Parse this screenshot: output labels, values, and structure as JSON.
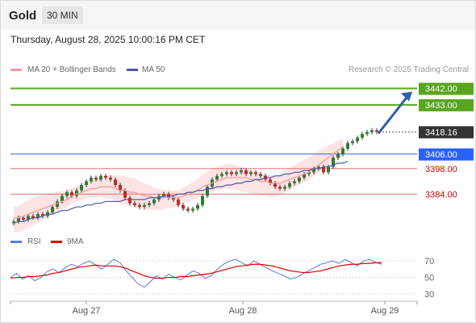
{
  "header": {
    "title": "Gold",
    "timeframe": "30 MIN"
  },
  "datetime": "Thursday, August 28, 2025 10:00:16 PM CET",
  "legend": {
    "ma20_label": "MA 20 + Bollinger Bands",
    "ma50_label": "MA 50",
    "rsi_label": "RSI",
    "rsi_ma_label": "9MA"
  },
  "credit": "Research © 2025 Trading Central",
  "colors": {
    "bull": "#2e7d32",
    "bear": "#c62828",
    "green_level": "#5aa51e",
    "blue_level": "#2962ff",
    "red_level": "#e57373",
    "last": "#333333",
    "ma20": "#ef9a9a",
    "ma50": "#4a5aa8",
    "band": "#fde3e3",
    "rsi": "#5b7bd5",
    "rsi_ma": "#e00000"
  },
  "chart_data": [
    {
      "type": "candlestick",
      "title": "Gold",
      "yrange": [
        3366,
        3448
      ],
      "xticks": [
        "Aug 27",
        "Aug 28",
        "Aug 29"
      ],
      "last_price": "3418.16",
      "levels": [
        {
          "value": 3442.0,
          "label": "3442.00",
          "kind": "resistance"
        },
        {
          "value": 3433.0,
          "label": "3433.00",
          "kind": "resistance"
        },
        {
          "value": 3406.0,
          "label": "3406.00",
          "kind": "pivot"
        },
        {
          "value": 3398.0,
          "label": "3398.00",
          "kind": "support"
        },
        {
          "value": 3384.0,
          "label": "3384.00",
          "kind": "support"
        }
      ],
      "closes": [
        3369,
        3371,
        3370,
        3372,
        3371,
        3373,
        3372,
        3374,
        3377,
        3380,
        3383,
        3385,
        3383,
        3386,
        3389,
        3391,
        3393,
        3392,
        3394,
        3393,
        3392,
        3389,
        3386,
        3382,
        3379,
        3378,
        3377,
        3378,
        3379,
        3381,
        3383,
        3384,
        3382,
        3381,
        3378,
        3376,
        3375,
        3376,
        3378,
        3383,
        3388,
        3392,
        3394,
        3395,
        3396,
        3395,
        3396,
        3397,
        3395,
        3396,
        3395,
        3394,
        3392,
        3390,
        3388,
        3387,
        3388,
        3390,
        3391,
        3393,
        3395,
        3396,
        3398,
        3399,
        3396,
        3399,
        3404,
        3406,
        3409,
        3412,
        3413,
        3415,
        3417,
        3418,
        3419,
        3418.16
      ],
      "ma20": [
        3371,
        3371,
        3372,
        3373,
        3374,
        3375,
        3376,
        3377,
        3378,
        3379,
        3380,
        3381,
        3383,
        3384,
        3385,
        3386,
        3387,
        3387,
        3388,
        3388,
        3388,
        3387,
        3386,
        3386,
        3385,
        3385,
        3384,
        3383,
        3383,
        3382,
        3382,
        3382,
        3382,
        3382,
        3382,
        3383,
        3384,
        3385,
        3386,
        3388,
        3389,
        3390,
        3391,
        3392,
        3393,
        3393,
        3393,
        3393,
        3393,
        3392,
        3392,
        3391,
        3391,
        3390,
        3390,
        3390,
        3391,
        3392,
        3393,
        3394,
        3395,
        3396,
        3398,
        3400,
        3402,
        3404,
        3406,
        3408,
        3410
      ],
      "ma50": [
        3368,
        3369,
        3369,
        3370,
        3371,
        3371,
        3372,
        3373,
        3373,
        3374,
        3375,
        3375,
        3376,
        3377,
        3377,
        3378,
        3378,
        3379,
        3379,
        3380,
        3380,
        3380,
        3380,
        3381,
        3381,
        3381,
        3381,
        3381,
        3382,
        3382,
        3382,
        3383,
        3383,
        3383,
        3384,
        3384,
        3385,
        3385,
        3386,
        3386,
        3387,
        3387,
        3388,
        3388,
        3389,
        3389,
        3390,
        3390,
        3391,
        3391,
        3392,
        3392,
        3393,
        3393,
        3394,
        3394,
        3395,
        3395,
        3396,
        3396,
        3397,
        3397,
        3398,
        3398,
        3399,
        3399,
        3400,
        3401,
        3401,
        3402
      ]
    },
    {
      "type": "line",
      "title": "RSI",
      "yticks": [
        70,
        50,
        30
      ],
      "yrange": [
        25,
        80
      ],
      "series": [
        {
          "name": "RSI",
          "values": [
            50,
            55,
            48,
            52,
            46,
            50,
            57,
            60,
            56,
            62,
            66,
            63,
            67,
            70,
            65,
            60,
            66,
            72,
            68,
            58,
            50,
            42,
            38,
            45,
            52,
            48,
            54,
            50,
            47,
            53,
            58,
            55,
            49,
            52,
            60,
            66,
            70,
            72,
            68,
            64,
            70,
            66,
            62,
            58,
            55,
            52,
            48,
            50,
            54,
            58,
            62,
            66,
            68,
            70,
            67,
            72,
            68,
            64,
            70,
            72,
            68,
            66
          ]
        },
        {
          "name": "9MA",
          "values": [
            49,
            50,
            50,
            51,
            51,
            52,
            53,
            55,
            56,
            58,
            60,
            62,
            63,
            64,
            65,
            64,
            64,
            64,
            63,
            61,
            58,
            55,
            52,
            50,
            49,
            49,
            50,
            50,
            51,
            51,
            52,
            53,
            54,
            55,
            57,
            59,
            61,
            63,
            64,
            65,
            66,
            66,
            65,
            64,
            62,
            60,
            58,
            57,
            56,
            56,
            57,
            58,
            60,
            62,
            64,
            65,
            66,
            66,
            67,
            67,
            68,
            68
          ]
        }
      ]
    }
  ]
}
